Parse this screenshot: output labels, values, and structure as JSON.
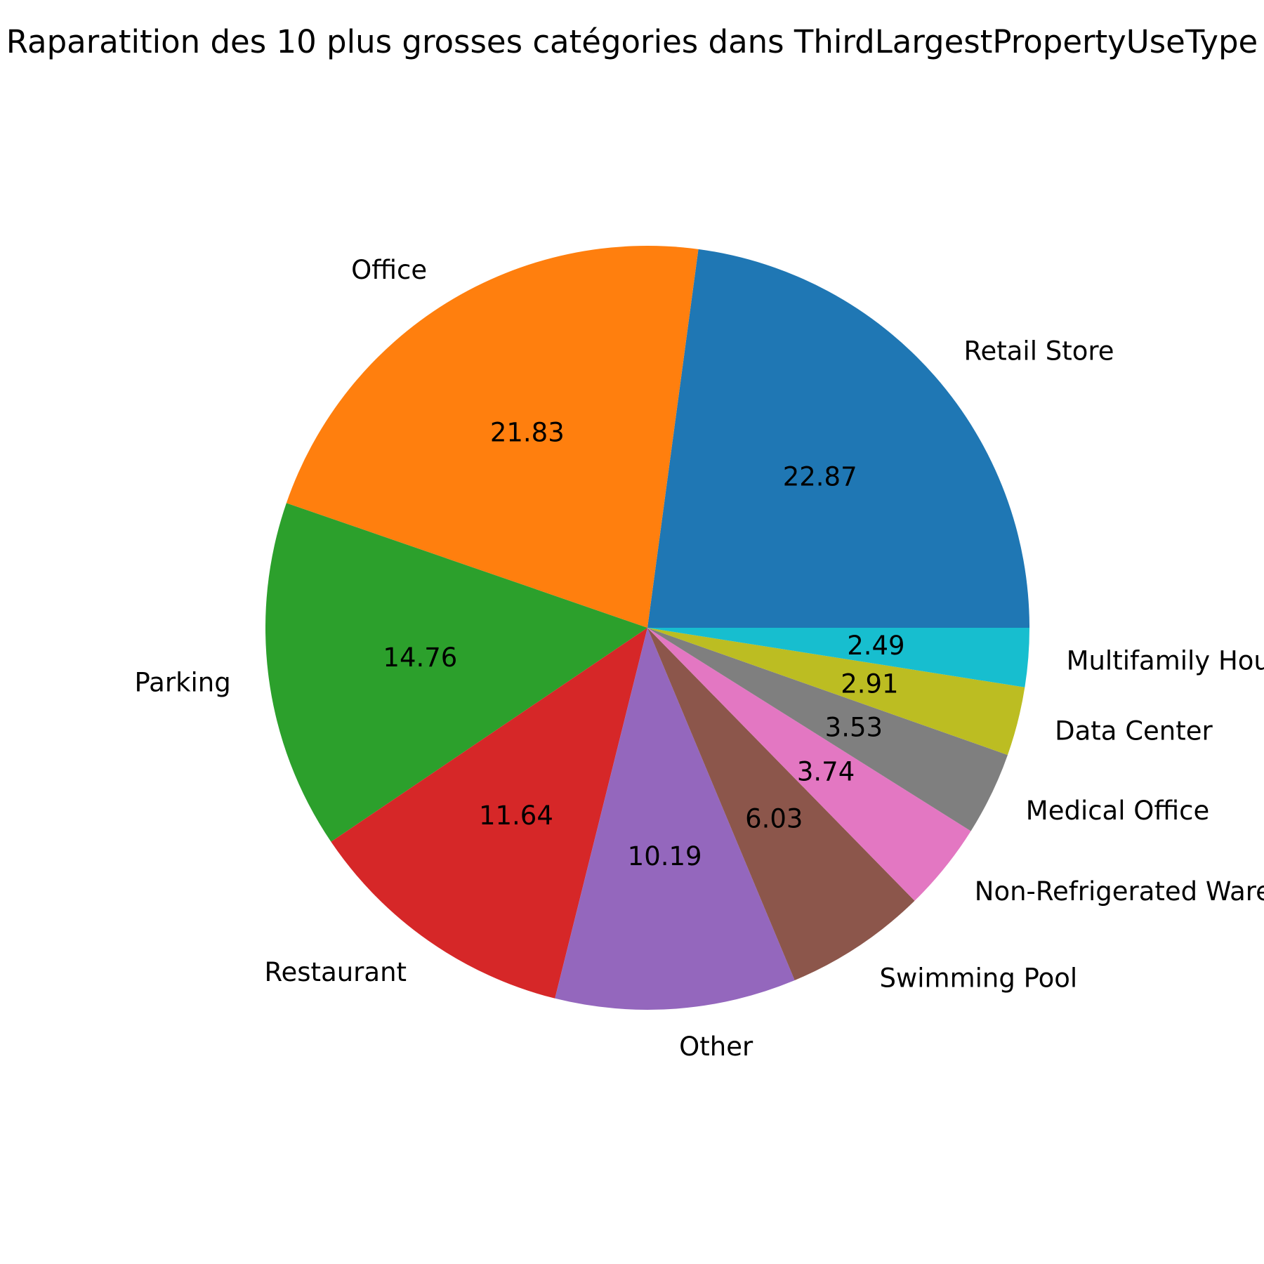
{
  "chart_data": {
    "type": "pie",
    "title": "Raparatition des 10 plus grosses catégories dans ThirdLargestPropertyUseType",
    "start_angle_deg": 0,
    "direction": "counterclockwise",
    "slices": [
      {
        "label": "Retail Store",
        "value": 22.87,
        "display": "22.87",
        "color": "#1f77b4"
      },
      {
        "label": "Office",
        "value": 21.83,
        "display": "21.83",
        "color": "#ff7f0e"
      },
      {
        "label": "Parking",
        "value": 14.76,
        "display": "14.76",
        "color": "#2ca02c"
      },
      {
        "label": "Restaurant",
        "value": 11.64,
        "display": "11.64",
        "color": "#d62728"
      },
      {
        "label": "Other",
        "value": 10.19,
        "display": "10.19",
        "color": "#9467bd"
      },
      {
        "label": "Swimming Pool",
        "value": 6.03,
        "display": "6.03",
        "color": "#8c564b"
      },
      {
        "label": "Non-Refrigerated Warehouse",
        "value": 3.74,
        "display": "3.74",
        "color": "#e377c2"
      },
      {
        "label": "Medical Office",
        "value": 3.53,
        "display": "3.53",
        "color": "#7f7f7f"
      },
      {
        "label": "Data Center",
        "value": 2.91,
        "display": "2.91",
        "color": "#bcbd22"
      },
      {
        "label": "Multifamily Housing",
        "value": 2.49,
        "display": "2.49",
        "color": "#17becf"
      }
    ]
  }
}
